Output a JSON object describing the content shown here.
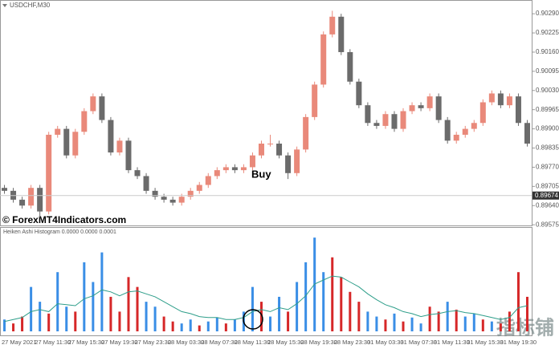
{
  "chart_data": [
    {
      "type": "candlestick",
      "title": "USDCHF,M30",
      "open": [
        0.897,
        0.8969,
        0.8966,
        0.8964,
        0.897,
        0.8962,
        0.8988,
        0.899,
        0.8981,
        0.8989,
        0.8996,
        0.9001,
        0.8993,
        0.8982,
        0.8986,
        0.8976,
        0.8974,
        0.8969,
        0.8967,
        0.8966,
        0.8965,
        0.8967,
        0.8969,
        0.8971,
        0.8974,
        0.8976,
        0.8977,
        0.8976,
        0.8977,
        0.8981,
        0.8985,
        0.8985,
        0.8981,
        0.8975,
        0.8983,
        0.8994,
        0.9005,
        0.9022,
        0.9028,
        0.9016,
        0.9006,
        0.8998,
        0.8992,
        0.8991,
        0.8995,
        0.899,
        0.8996,
        0.8998,
        0.8997,
        0.9001,
        0.8993,
        0.8986,
        0.8988,
        0.899,
        0.8992,
        0.8999,
        0.9002,
        0.8998,
        0.9001,
        0.8992
      ],
      "high": [
        0.8971,
        0.897,
        0.8967,
        0.8971,
        0.8971,
        0.8989,
        0.8991,
        0.8991,
        0.899,
        0.8997,
        0.9002,
        0.9002,
        0.8994,
        0.8987,
        0.8987,
        0.8977,
        0.8975,
        0.897,
        0.8968,
        0.8967,
        0.8968,
        0.897,
        0.8972,
        0.8975,
        0.8977,
        0.8978,
        0.8978,
        0.8978,
        0.8982,
        0.8986,
        0.8988,
        0.8986,
        0.8982,
        0.8984,
        0.8995,
        0.9006,
        0.9023,
        0.903,
        0.9029,
        0.9017,
        0.9007,
        0.8999,
        0.8993,
        0.8996,
        0.8996,
        0.8997,
        0.8999,
        0.8999,
        0.9002,
        0.9002,
        0.8994,
        0.8989,
        0.8991,
        0.8993,
        0.9,
        0.9003,
        0.9003,
        0.9002,
        0.9002,
        0.8993
      ],
      "low": [
        0.8968,
        0.8965,
        0.8963,
        0.8963,
        0.896,
        0.8961,
        0.8987,
        0.898,
        0.898,
        0.8988,
        0.8995,
        0.8992,
        0.8981,
        0.8981,
        0.8975,
        0.8973,
        0.8968,
        0.8966,
        0.8965,
        0.8964,
        0.8964,
        0.8966,
        0.8968,
        0.897,
        0.8973,
        0.8975,
        0.8975,
        0.8975,
        0.8976,
        0.898,
        0.8984,
        0.898,
        0.8973,
        0.8974,
        0.8982,
        0.8993,
        0.9004,
        0.9021,
        0.9015,
        0.9005,
        0.8997,
        0.8991,
        0.899,
        0.899,
        0.8989,
        0.8989,
        0.8995,
        0.8996,
        0.8996,
        0.8992,
        0.8985,
        0.8985,
        0.8987,
        0.8989,
        0.8991,
        0.8998,
        0.8997,
        0.8997,
        0.8991,
        0.8984
      ],
      "close": [
        0.8969,
        0.8966,
        0.8964,
        0.897,
        0.8962,
        0.8988,
        0.899,
        0.8981,
        0.8989,
        0.8996,
        0.9001,
        0.8993,
        0.8982,
        0.8986,
        0.8976,
        0.8974,
        0.8969,
        0.8967,
        0.8966,
        0.8965,
        0.8967,
        0.8969,
        0.8971,
        0.8974,
        0.8976,
        0.8977,
        0.8976,
        0.8977,
        0.8981,
        0.8985,
        0.8985,
        0.8981,
        0.8975,
        0.8983,
        0.8994,
        0.9005,
        0.9022,
        0.9028,
        0.9016,
        0.9006,
        0.8998,
        0.8992,
        0.8991,
        0.8995,
        0.899,
        0.8996,
        0.8998,
        0.8997,
        0.9001,
        0.8993,
        0.8986,
        0.8988,
        0.899,
        0.8992,
        0.8999,
        0.9002,
        0.8998,
        0.9001,
        0.8992,
        0.8985
      ],
      "up_color": "#e9897a",
      "down_color": "#6b6b6b",
      "ylim": [
        0.8957,
        0.90323
      ],
      "yticks": [
        {
          "value": 0.9029,
          "label": "0.90290"
        },
        0.90225,
        {
          "value": 0.9016,
          "label": "0.90160"
        },
        0.90095,
        {
          "value": 0.9003,
          "label": "0.90030"
        },
        0.89965,
        {
          "value": 0.899,
          "label": "0.89900"
        },
        0.89835,
        {
          "value": 0.8977,
          "label": "0.89770"
        },
        0.89705,
        {
          "value": 0.8964,
          "label": "0.89640"
        },
        0.89575
      ],
      "current_price": 0.89674,
      "annotations": [
        "Buy",
        "© ForexMT4Indicators.com"
      ]
    },
    {
      "type": "bar",
      "title": "Heiken Ashi Histogram 0.0000 0.0000 0.0001",
      "values": [
        12,
        8,
        15,
        45,
        30,
        18,
        60,
        25,
        20,
        70,
        50,
        80,
        35,
        20,
        55,
        45,
        30,
        25,
        15,
        10,
        8,
        12,
        6,
        10,
        14,
        8,
        12,
        20,
        45,
        30,
        15,
        35,
        20,
        50,
        70,
        95,
        60,
        75,
        55,
        40,
        30,
        20,
        15,
        12,
        18,
        10,
        14,
        8,
        25,
        20,
        30,
        22,
        15,
        18,
        12,
        10,
        8,
        20,
        60,
        35
      ],
      "bar_colors": [
        "#3a8ee6",
        "#d62728",
        "#d62728",
        "#3a8ee6",
        "#3a8ee6",
        "#d62728",
        "#3a8ee6",
        "#3a8ee6",
        "#d62728",
        "#3a8ee6",
        "#3a8ee6",
        "#3a8ee6",
        "#d62728",
        "#d62728",
        "#d62728",
        "#d62728",
        "#3a8ee6",
        "#3a8ee6",
        "#d62728",
        "#d62728",
        "#3a8ee6",
        "#3a8ee6",
        "#d62728",
        "#3a8ee6",
        "#3a8ee6",
        "#d62728",
        "#3a8ee6",
        "#3a8ee6",
        "#3a8ee6",
        "#d62728",
        "#3a8ee6",
        "#3a8ee6",
        "#d62728",
        "#3a8ee6",
        "#3a8ee6",
        "#3a8ee6",
        "#3a8ee6",
        "#d62728",
        "#d62728",
        "#d62728",
        "#d62728",
        "#3a8ee6",
        "#3a8ee6",
        "#d62728",
        "#3a8ee6",
        "#d62728",
        "#3a8ee6",
        "#3a8ee6",
        "#d62728",
        "#d62728",
        "#3a8ee6",
        "#d62728",
        "#3a8ee6",
        "#3a8ee6",
        "#d62728",
        "#3a8ee6",
        "#d62728",
        "#d62728",
        "#d62728",
        "#d62728"
      ],
      "line_values": [
        10,
        12,
        14,
        20,
        22,
        20,
        28,
        27,
        26,
        33,
        36,
        42,
        40,
        36,
        40,
        41,
        38,
        35,
        30,
        25,
        20,
        18,
        15,
        14,
        14,
        12,
        12,
        14,
        20,
        22,
        20,
        24,
        22,
        28,
        36,
        48,
        52,
        56,
        55,
        50,
        45,
        38,
        32,
        27,
        24,
        20,
        18,
        15,
        17,
        18,
        20,
        21,
        19,
        18,
        16,
        14,
        12,
        14,
        24,
        26
      ],
      "line_color": "#2e9e8a",
      "ylim": [
        0,
        100
      ],
      "xtick_labels": [
        "27 May 2021",
        "27 May 11:30",
        "27 May 15:30",
        "27 May 19:30",
        "27 May 23:30",
        "28 May 03:30",
        "28 May 07:30",
        "28 May 11:30",
        "28 May 15:30",
        "28 May 19:30",
        "28 May 23:30",
        "31 May 03:30",
        "31 May 07:30",
        "31 May 11:30",
        "31 May 15:30",
        "31 May 19:30"
      ],
      "watermark": "指标铺"
    }
  ]
}
